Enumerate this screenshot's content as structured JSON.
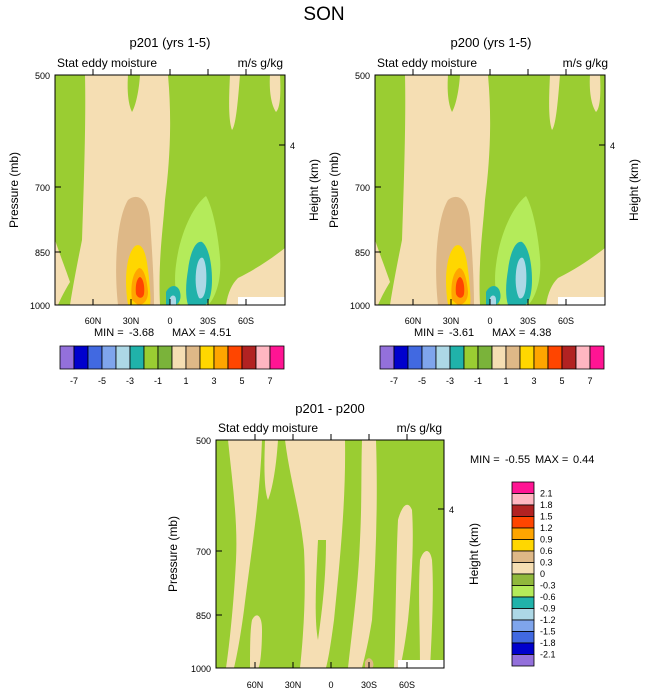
{
  "figure": {
    "title": "SON"
  },
  "colors": {
    "palette_main": [
      "#9370db",
      "#0000cd",
      "#4169e1",
      "#7fa5ec",
      "#add8e6",
      "#20b2aa",
      "#9acd32",
      "#7ab33a",
      "#f5deb3",
      "#deb887",
      "#ffd700",
      "#ffa500",
      "#ff4500",
      "#b22222",
      "#ffb6c1",
      "#ff1493"
    ],
    "palette_diff": [
      "#9370db",
      "#0000cd",
      "#4169e1",
      "#7fa5ec",
      "#add8e6",
      "#20b2aa",
      "#b4eb5a",
      "#90b83c",
      "#f5deb3",
      "#deb887",
      "#ffd700",
      "#ffa500",
      "#ff4500",
      "#b22222",
      "#ffb6c1",
      "#ff1493"
    ]
  },
  "chart_data": [
    {
      "type": "heatmap",
      "panel": "p201",
      "title": "p201 (yrs 1-5)",
      "left_label": "Stat eddy moisture",
      "right_label": "m/s g/kg",
      "ylabel": "Pressure (mb)",
      "y2label": "Height (km)",
      "y_ticks": [
        "500",
        "700",
        "850",
        "1000"
      ],
      "y2_ticks": [
        "4"
      ],
      "x_ticks": [
        "60N",
        "30N",
        "0",
        "30S",
        "60S"
      ],
      "stats": {
        "min_label": "MIN =",
        "min": "-3.68",
        "max_label": "MAX =",
        "max": "4.51"
      },
      "extremes": {
        "min_value": -3.68,
        "max_value": 4.51
      }
    },
    {
      "type": "heatmap",
      "panel": "p200",
      "title": "p200 (yrs 1-5)",
      "left_label": "Stat eddy moisture",
      "right_label": "m/s g/kg",
      "ylabel": "Pressure (mb)",
      "y2label": "Height (km)",
      "y_ticks": [
        "500",
        "700",
        "850",
        "1000"
      ],
      "y2_ticks": [
        "4"
      ],
      "x_ticks": [
        "60N",
        "30N",
        "0",
        "30S",
        "60S"
      ],
      "stats": {
        "min_label": "MIN =",
        "min": "-3.61",
        "max_label": "MAX =",
        "max": "4.38"
      },
      "extremes": {
        "min_value": -3.61,
        "max_value": 4.38
      }
    },
    {
      "type": "heatmap",
      "panel": "diff",
      "title": "p201 - p200",
      "left_label": "Stat eddy moisture",
      "right_label": "m/s g/kg",
      "ylabel": "Pressure (mb)",
      "y2label": "Height (km)",
      "y_ticks": [
        "500",
        "700",
        "850",
        "1000"
      ],
      "y2_ticks": [
        "4"
      ],
      "x_ticks": [
        "60N",
        "30N",
        "0",
        "30S",
        "60S"
      ],
      "stats": {
        "min_label": "MIN =",
        "min": "-0.55",
        "max_label": "MAX =",
        "max": "0.44"
      },
      "extremes": {
        "min_value": -0.55,
        "max_value": 0.44
      }
    }
  ],
  "colorbars": {
    "main": {
      "labels": [
        "-7",
        "-5",
        "-3",
        "-1",
        "1",
        "3",
        "5",
        "7"
      ]
    },
    "diff": {
      "labels": [
        "2.1",
        "1.8",
        "1.5",
        "1.2",
        "0.9",
        "0.6",
        "0.3",
        "0",
        "-0.3",
        "-0.6",
        "-0.9",
        "-1.2",
        "-1.5",
        "-1.8",
        "-2.1"
      ]
    }
  }
}
